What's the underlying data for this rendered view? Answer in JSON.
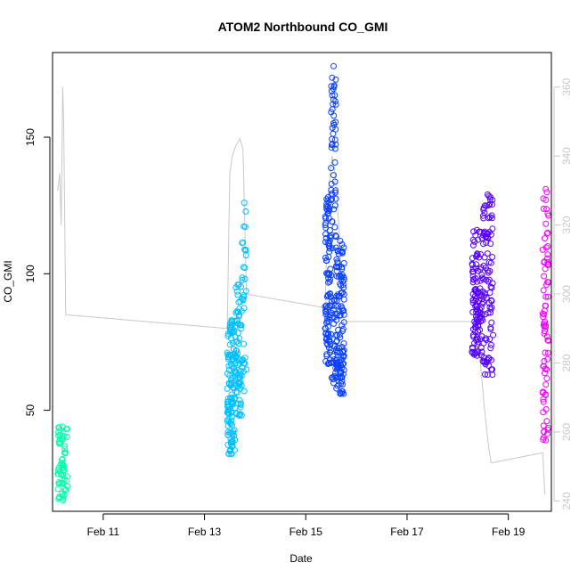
{
  "chart_data": {
    "type": "scatter",
    "title": "ATOM2 Northbound CO_GMI",
    "xlabel": "Date",
    "ylabel": "CO_GMI",
    "x_ticks": [
      "Feb 11",
      "Feb 13",
      "Feb 15",
      "Feb 17",
      "Feb 19"
    ],
    "x_tick_values": [
      11,
      13,
      15,
      17,
      19
    ],
    "xlim": [
      10.0,
      19.85
    ],
    "ylim": [
      13,
      181
    ],
    "y_ticks": [
      50,
      100,
      150
    ],
    "y2lim": [
      237,
      370
    ],
    "y2_ticks": [
      240,
      260,
      280,
      300,
      320,
      340,
      360
    ],
    "grid": false,
    "legend": "none",
    "colors": {
      "secondary_line": "#c8c8c8",
      "right_axis": "#c8c8c8"
    },
    "series": [
      {
        "color": "#00ffaa",
        "segments": [
          {
            "x0": 10.1,
            "x1": 10.3,
            "ymin": 17,
            "ymax": 44,
            "density": 0.6
          }
        ]
      },
      {
        "color": "#00bfff",
        "segments": [
          {
            "x0": 13.45,
            "x1": 13.62,
            "ymin": 34,
            "ymax": 83,
            "density": 0.8
          },
          {
            "x0": 13.62,
            "x1": 13.74,
            "ymin": 48,
            "ymax": 96,
            "density": 0.6
          },
          {
            "x0": 13.74,
            "x1": 13.83,
            "ymin": 57,
            "ymax": 126,
            "density": 0.25
          }
        ]
      },
      {
        "color": "#0a40ff",
        "segments": [
          {
            "x0": 15.38,
            "x1": 15.5,
            "ymin": 67,
            "ymax": 128,
            "density": 0.7
          },
          {
            "x0": 15.5,
            "x1": 15.6,
            "ymin": 60,
            "ymax": 176,
            "density": 0.35
          },
          {
            "x0": 15.6,
            "x1": 15.76,
            "ymin": 56,
            "ymax": 112,
            "density": 0.7
          }
        ]
      },
      {
        "color": "#5500ff",
        "segments": [
          {
            "x0": 18.28,
            "x1": 18.48,
            "ymin": 70,
            "ymax": 116,
            "density": 0.6
          },
          {
            "x0": 18.48,
            "x1": 18.7,
            "ymin": 63,
            "ymax": 129,
            "density": 0.35
          }
        ]
      },
      {
        "color": "#ee00ff",
        "segments": [
          {
            "x0": 19.68,
            "x1": 19.8,
            "ymin": 39,
            "ymax": 131,
            "density": 0.35
          }
        ]
      }
    ],
    "secondary_series": {
      "axis": "right",
      "x": [
        10.1,
        10.14,
        10.17,
        10.2,
        10.22,
        10.26,
        13.45,
        13.5,
        13.55,
        13.62,
        13.7,
        13.76,
        13.83,
        15.38,
        15.45,
        15.52,
        15.58,
        15.66,
        15.74,
        18.28,
        18.4,
        18.52,
        18.6,
        18.66,
        19.68,
        19.72
      ],
      "y": [
        330,
        335,
        320,
        360,
        350,
        294,
        290,
        335,
        340,
        343,
        345,
        342,
        300,
        296,
        330,
        340,
        335,
        318,
        292,
        292,
        288,
        268,
        257,
        251,
        254,
        242
      ]
    }
  }
}
